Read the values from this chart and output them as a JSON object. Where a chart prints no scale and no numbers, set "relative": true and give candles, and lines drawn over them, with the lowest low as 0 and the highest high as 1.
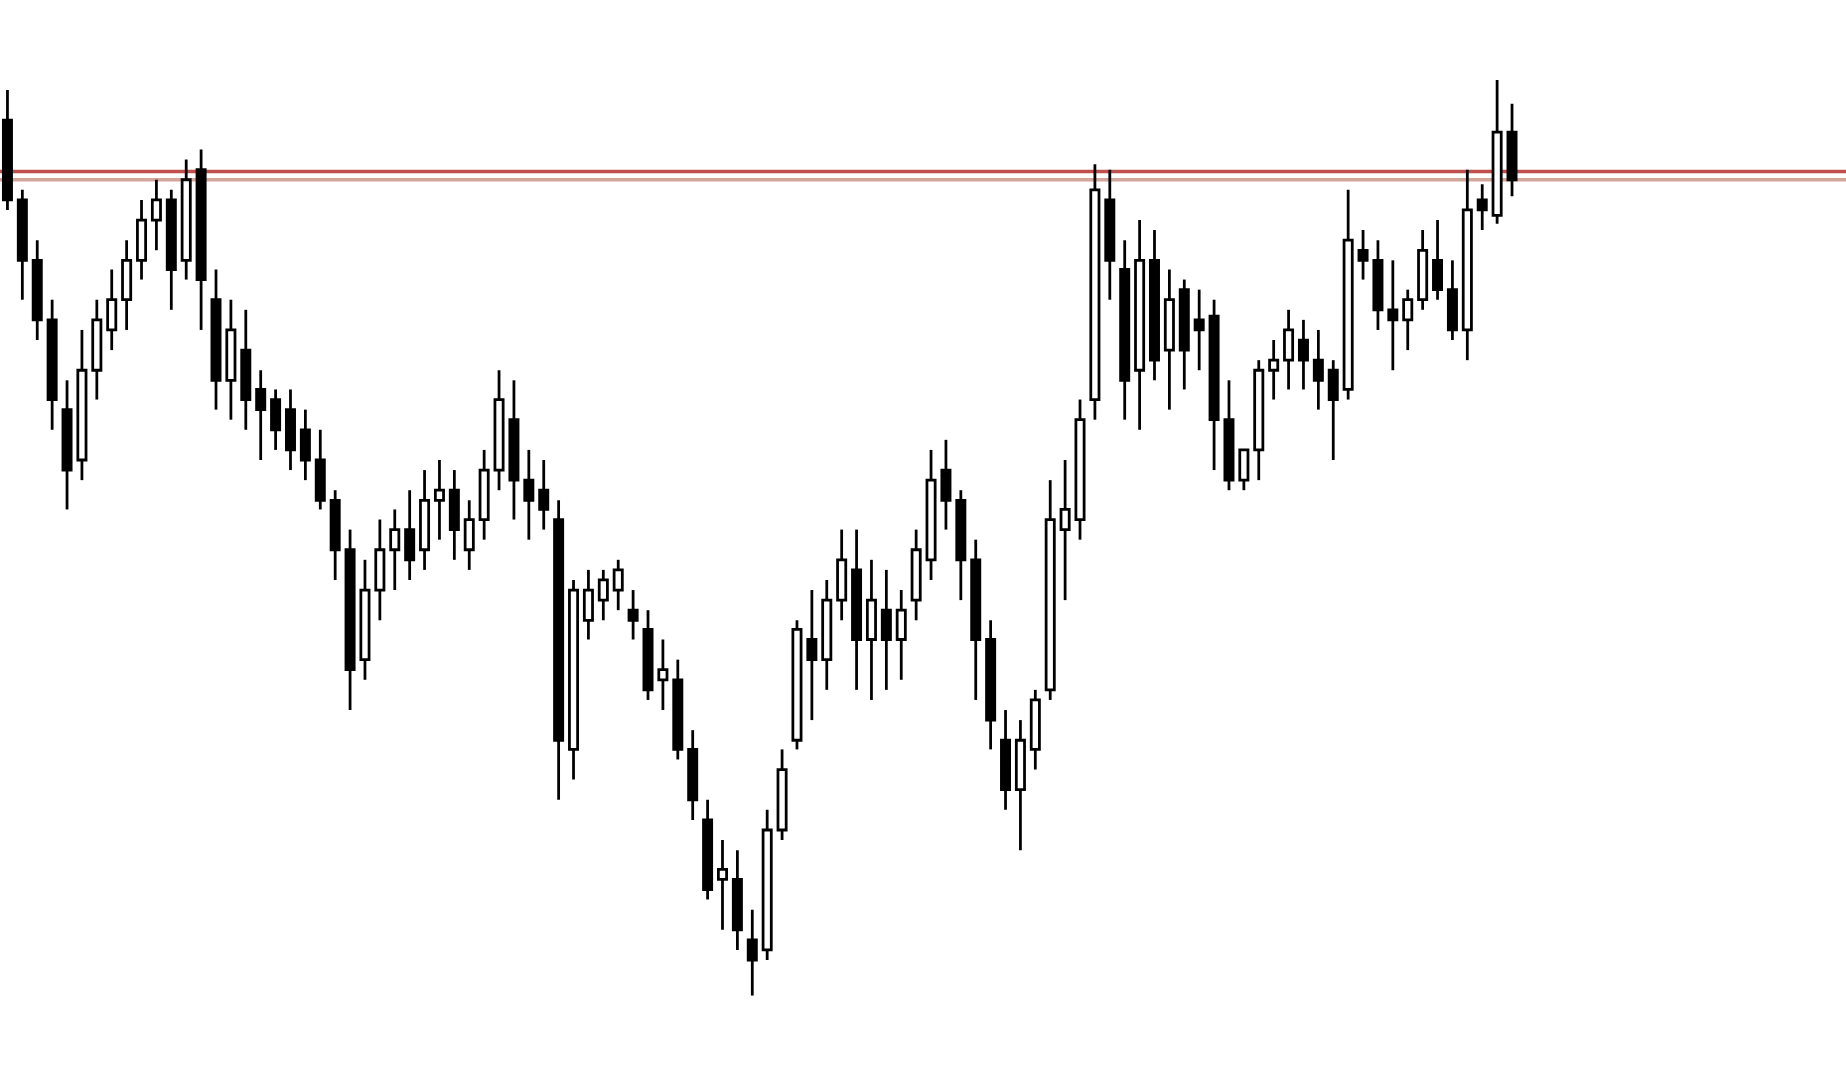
{
  "chart_data": {
    "type": "candlestick",
    "relative": true,
    "color": "#000000",
    "categories": [
      null,
      null,
      null,
      null,
      null,
      null,
      null,
      null,
      null,
      null,
      null,
      null,
      null,
      null,
      null,
      null,
      null,
      null,
      null,
      null,
      null,
      null,
      null,
      null,
      null,
      null,
      null,
      null,
      null,
      null,
      null,
      null,
      null,
      null,
      null,
      null,
      null,
      null,
      null,
      null,
      null,
      null,
      null,
      null,
      null,
      null,
      null,
      null,
      null,
      null,
      null,
      null,
      null,
      null,
      null,
      null,
      null,
      null,
      null,
      null,
      null,
      null,
      null,
      null,
      null,
      null,
      null,
      null,
      null,
      null,
      null,
      null,
      null,
      null,
      null,
      null,
      null,
      null,
      null,
      null,
      null,
      null,
      null,
      null,
      null,
      null,
      null,
      null,
      null,
      null,
      null,
      null,
      null,
      null,
      null,
      null,
      null,
      null,
      null,
      null,
      null,
      null
    ],
    "ohlc": [
      [
        0.956,
        0.989,
        0.858,
        0.869
      ],
      [
        0.869,
        0.88,
        0.76,
        0.803
      ],
      [
        0.803,
        0.825,
        0.716,
        0.738
      ],
      [
        0.738,
        0.76,
        0.618,
        0.651
      ],
      [
        0.64,
        0.672,
        0.531,
        0.574
      ],
      [
        0.585,
        0.727,
        0.563,
        0.683
      ],
      [
        0.683,
        0.76,
        0.651,
        0.738
      ],
      [
        0.727,
        0.793,
        0.705,
        0.76
      ],
      [
        0.76,
        0.825,
        0.727,
        0.803
      ],
      [
        0.803,
        0.869,
        0.782,
        0.847
      ],
      [
        0.847,
        0.891,
        0.814,
        0.869
      ],
      [
        0.869,
        0.88,
        0.749,
        0.793
      ],
      [
        0.803,
        0.913,
        0.782,
        0.891
      ],
      [
        0.902,
        0.924,
        0.727,
        0.782
      ],
      [
        0.76,
        0.793,
        0.64,
        0.672
      ],
      [
        0.672,
        0.76,
        0.629,
        0.727
      ],
      [
        0.705,
        0.749,
        0.618,
        0.651
      ],
      [
        0.662,
        0.683,
        0.585,
        0.64
      ],
      [
        0.651,
        0.662,
        0.596,
        0.618
      ],
      [
        0.64,
        0.662,
        0.574,
        0.596
      ],
      [
        0.618,
        0.64,
        0.563,
        0.585
      ],
      [
        0.585,
        0.618,
        0.531,
        0.541
      ],
      [
        0.541,
        0.552,
        0.454,
        0.487
      ],
      [
        0.487,
        0.509,
        0.312,
        0.356
      ],
      [
        0.367,
        0.476,
        0.345,
        0.443
      ],
      [
        0.443,
        0.52,
        0.41,
        0.487
      ],
      [
        0.487,
        0.531,
        0.443,
        0.509
      ],
      [
        0.509,
        0.552,
        0.454,
        0.476
      ],
      [
        0.487,
        0.574,
        0.465,
        0.541
      ],
      [
        0.541,
        0.585,
        0.498,
        0.552
      ],
      [
        0.552,
        0.574,
        0.476,
        0.509
      ],
      [
        0.487,
        0.541,
        0.465,
        0.52
      ],
      [
        0.52,
        0.596,
        0.498,
        0.574
      ],
      [
        0.574,
        0.683,
        0.552,
        0.651
      ],
      [
        0.629,
        0.672,
        0.52,
        0.563
      ],
      [
        0.563,
        0.596,
        0.498,
        0.541
      ],
      [
        0.552,
        0.585,
        0.509,
        0.531
      ],
      [
        0.52,
        0.541,
        0.214,
        0.279
      ],
      [
        0.269,
        0.454,
        0.236,
        0.443
      ],
      [
        0.41,
        0.465,
        0.389,
        0.443
      ],
      [
        0.432,
        0.465,
        0.41,
        0.454
      ],
      [
        0.443,
        0.476,
        0.421,
        0.465
      ],
      [
        0.421,
        0.443,
        0.389,
        0.41
      ],
      [
        0.4,
        0.421,
        0.323,
        0.334
      ],
      [
        0.345,
        0.389,
        0.312,
        0.356
      ],
      [
        0.345,
        0.367,
        0.258,
        0.269
      ],
      [
        0.269,
        0.29,
        0.192,
        0.214
      ],
      [
        0.192,
        0.214,
        0.105,
        0.116
      ],
      [
        0.127,
        0.17,
        0.072,
        0.138
      ],
      [
        0.127,
        0.159,
        0.05,
        0.072
      ],
      [
        0.061,
        0.094,
        0.0,
        0.039
      ],
      [
        0.05,
        0.203,
        0.039,
        0.181
      ],
      [
        0.181,
        0.269,
        0.17,
        0.247
      ],
      [
        0.279,
        0.41,
        0.269,
        0.4
      ],
      [
        0.389,
        0.443,
        0.301,
        0.367
      ],
      [
        0.367,
        0.454,
        0.334,
        0.432
      ],
      [
        0.432,
        0.509,
        0.41,
        0.476
      ],
      [
        0.465,
        0.509,
        0.334,
        0.389
      ],
      [
        0.389,
        0.476,
        0.323,
        0.432
      ],
      [
        0.421,
        0.465,
        0.334,
        0.389
      ],
      [
        0.389,
        0.443,
        0.345,
        0.421
      ],
      [
        0.432,
        0.509,
        0.41,
        0.487
      ],
      [
        0.476,
        0.596,
        0.454,
        0.563
      ],
      [
        0.574,
        0.607,
        0.509,
        0.541
      ],
      [
        0.541,
        0.552,
        0.432,
        0.476
      ],
      [
        0.476,
        0.498,
        0.323,
        0.389
      ],
      [
        0.389,
        0.41,
        0.269,
        0.301
      ],
      [
        0.279,
        0.312,
        0.203,
        0.225
      ],
      [
        0.225,
        0.301,
        0.159,
        0.279
      ],
      [
        0.269,
        0.334,
        0.247,
        0.323
      ],
      [
        0.334,
        0.563,
        0.323,
        0.52
      ],
      [
        0.509,
        0.585,
        0.432,
        0.531
      ],
      [
        0.52,
        0.651,
        0.498,
        0.629
      ],
      [
        0.651,
        0.908,
        0.629,
        0.88
      ],
      [
        0.869,
        0.902,
        0.76,
        0.803
      ],
      [
        0.793,
        0.825,
        0.629,
        0.672
      ],
      [
        0.683,
        0.847,
        0.618,
        0.803
      ],
      [
        0.803,
        0.836,
        0.672,
        0.694
      ],
      [
        0.705,
        0.793,
        0.64,
        0.76
      ],
      [
        0.771,
        0.782,
        0.662,
        0.705
      ],
      [
        0.738,
        0.771,
        0.683,
        0.727
      ],
      [
        0.742,
        0.76,
        0.574,
        0.629
      ],
      [
        0.629,
        0.672,
        0.552,
        0.563
      ],
      [
        0.563,
        0.596,
        0.552,
        0.596
      ],
      [
        0.596,
        0.694,
        0.563,
        0.683
      ],
      [
        0.683,
        0.716,
        0.651,
        0.694
      ],
      [
        0.694,
        0.749,
        0.662,
        0.727
      ],
      [
        0.716,
        0.738,
        0.662,
        0.694
      ],
      [
        0.694,
        0.727,
        0.64,
        0.672
      ],
      [
        0.683,
        0.694,
        0.585,
        0.651
      ],
      [
        0.662,
        0.88,
        0.651,
        0.825
      ],
      [
        0.814,
        0.836,
        0.782,
        0.803
      ],
      [
        0.803,
        0.825,
        0.727,
        0.749
      ],
      [
        0.749,
        0.803,
        0.683,
        0.738
      ],
      [
        0.738,
        0.771,
        0.705,
        0.76
      ],
      [
        0.76,
        0.836,
        0.749,
        0.814
      ],
      [
        0.803,
        0.847,
        0.76,
        0.771
      ],
      [
        0.771,
        0.803,
        0.716,
        0.727
      ],
      [
        0.727,
        0.902,
        0.694,
        0.858
      ],
      [
        0.869,
        0.886,
        0.836,
        0.858
      ],
      [
        0.852,
        1.0,
        0.843,
        0.943
      ],
      [
        0.943,
        0.974,
        0.873,
        0.891
      ]
    ],
    "ref_lines": [
      {
        "axis": "y",
        "value": 0.9,
        "color": "#c0504d"
      },
      {
        "axis": "y",
        "value": 0.891,
        "color": "#d4a59a"
      }
    ]
  }
}
